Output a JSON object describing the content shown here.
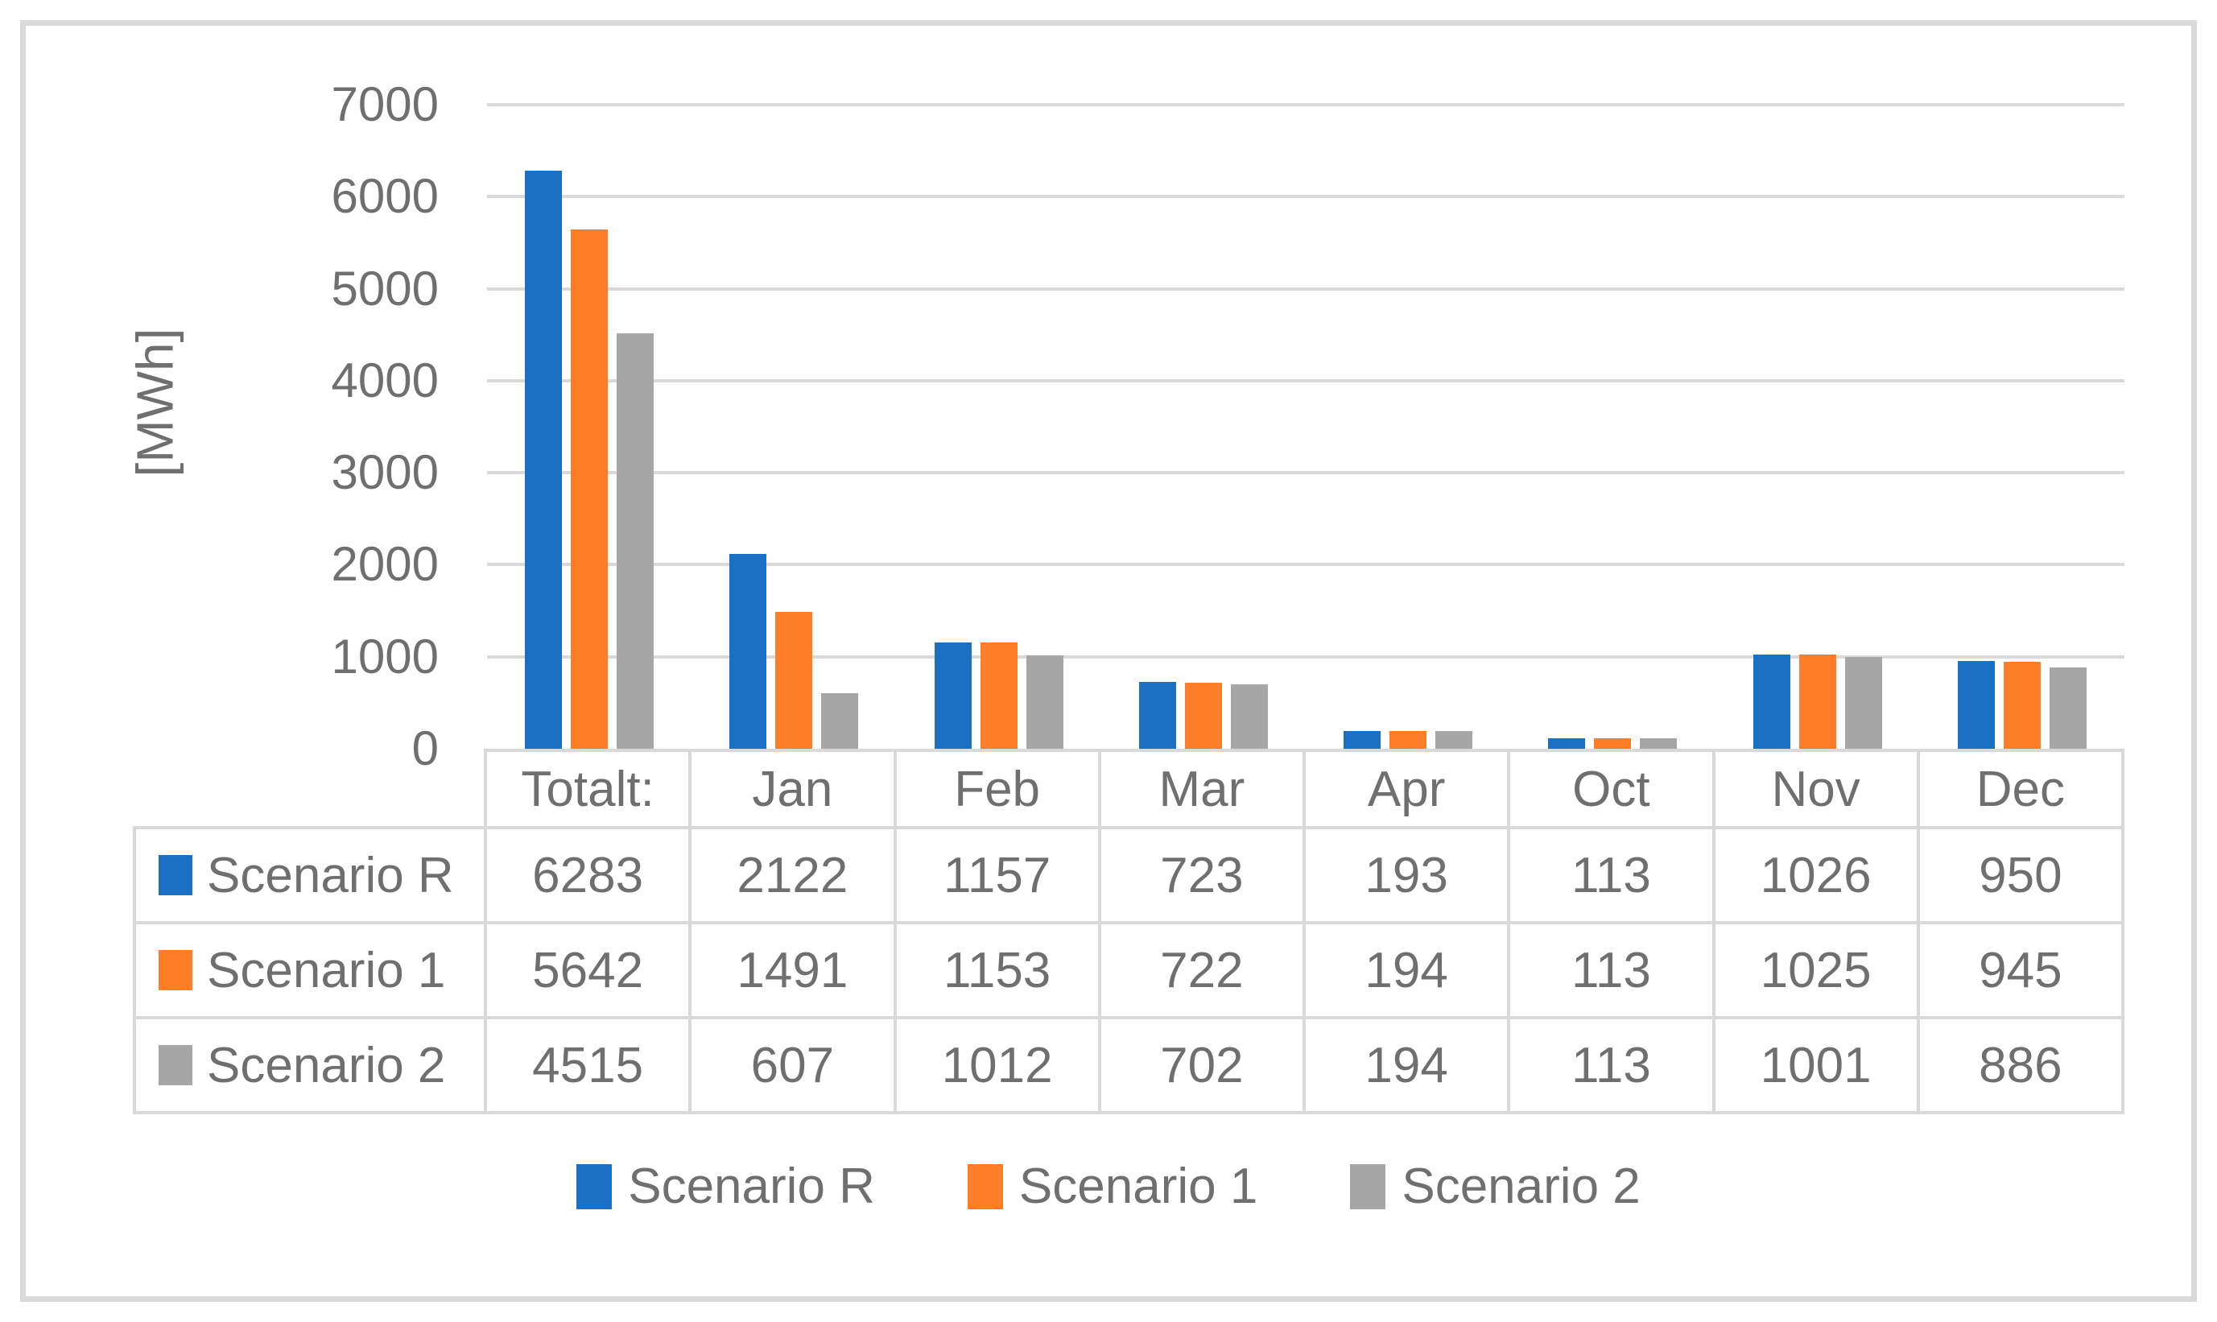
{
  "chart_data": {
    "type": "bar",
    "title": "",
    "xlabel": "",
    "ylabel": "[MWh]",
    "categories": [
      "Totalt:",
      "Jan",
      "Feb",
      "Mar",
      "Apr",
      "Oct",
      "Nov",
      "Dec"
    ],
    "series": [
      {
        "name": "Scenario R",
        "color": "#1c70c4",
        "values": [
          6283,
          2122,
          1157,
          723,
          193,
          113,
          1026,
          950
        ]
      },
      {
        "name": "Scenario 1",
        "color": "#fd7e27",
        "values": [
          5642,
          1491,
          1153,
          722,
          194,
          113,
          1025,
          945
        ]
      },
      {
        "name": "Scenario 2",
        "color": "#a6a6a6",
        "values": [
          4515,
          607,
          1012,
          702,
          194,
          113,
          1001,
          886
        ]
      }
    ],
    "ylim": [
      0,
      7000
    ],
    "yticks": [
      0,
      1000,
      2000,
      3000,
      4000,
      5000,
      6000,
      7000
    ],
    "grid": true,
    "grid_color": "#d9d9d9",
    "text_color": "#6f6f6f",
    "legend_position": "bottom",
    "data_table_shown": true
  }
}
